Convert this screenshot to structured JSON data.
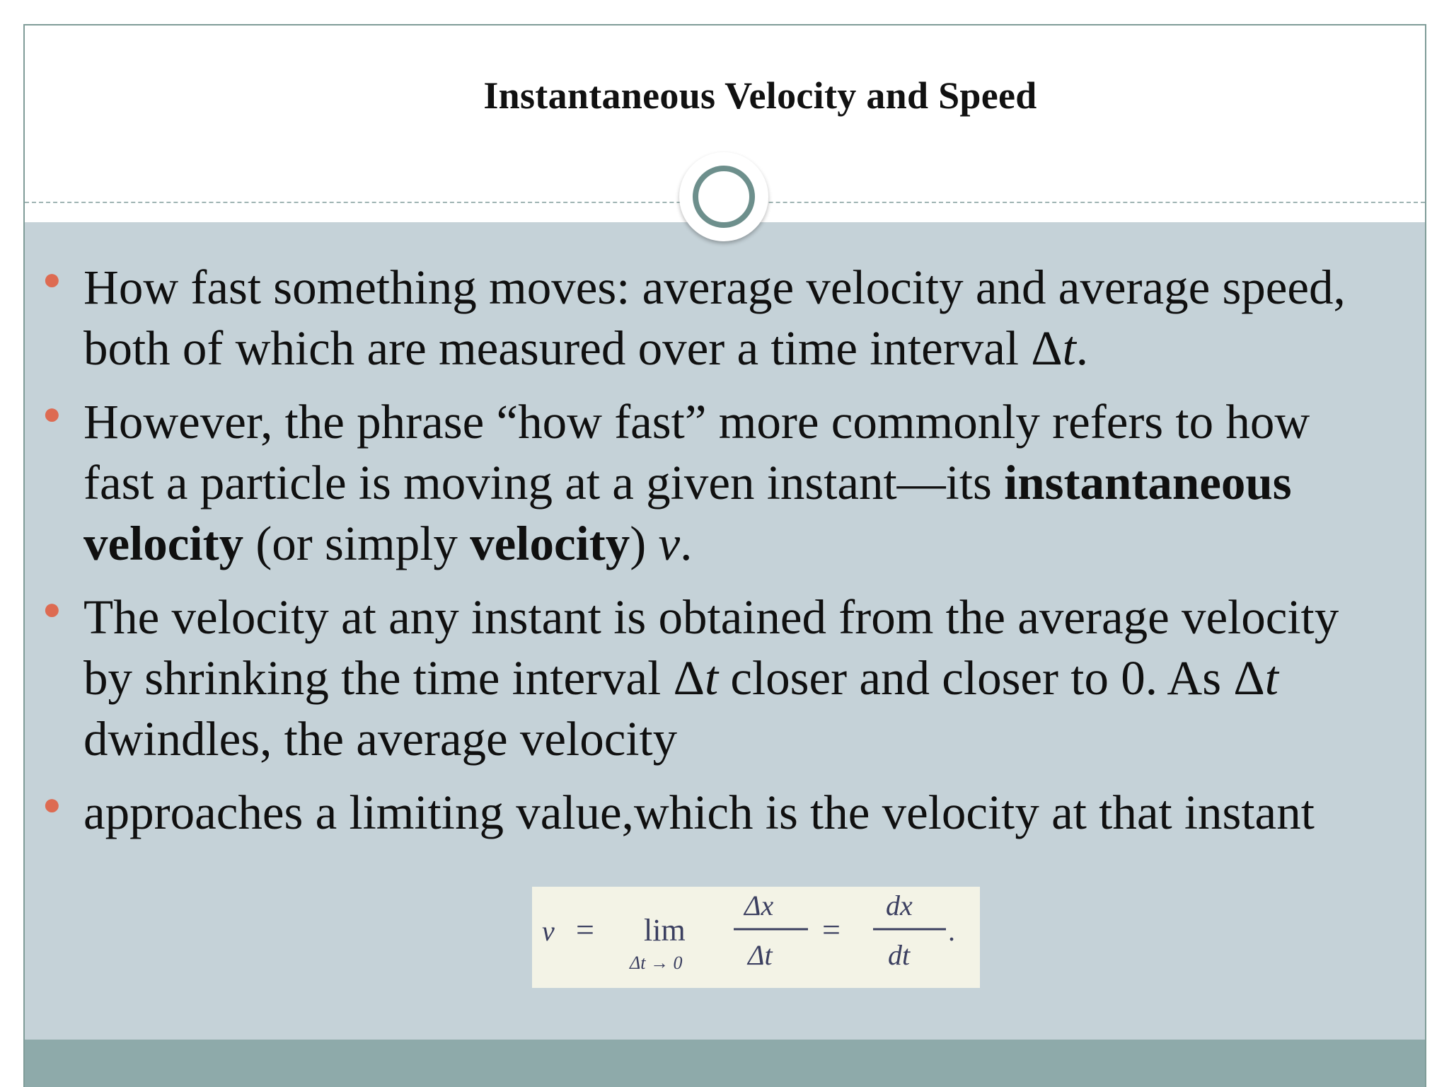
{
  "slide": {
    "title": "Instantaneous Velocity and Speed",
    "bullets": [
      {
        "parts": [
          {
            "text": "How fast something moves: average velocity and average speed, both of which are measured over a time interval Δ"
          },
          {
            "text": "t",
            "style": "italic"
          },
          {
            "text": "."
          }
        ]
      },
      {
        "parts": [
          {
            "text": "However, the phrase “how fast” more commonly refers to how fast a particle is moving at a given instant—its "
          },
          {
            "text": "instantaneous velocity",
            "style": "bold"
          },
          {
            "text": " (or simply "
          },
          {
            "text": "velocity",
            "style": "bold"
          },
          {
            "text": ") "
          },
          {
            "text": "v",
            "style": "italic"
          },
          {
            "text": "."
          }
        ]
      },
      {
        "parts": [
          {
            "text": "The velocity at any instant is obtained from the average velocity by shrinking the time interval Δ"
          },
          {
            "text": "t",
            "style": "italic"
          },
          {
            "text": " closer and closer to 0. As Δ"
          },
          {
            "text": "t",
            "style": "italic"
          },
          {
            "text": " dwindles, the average velocity"
          }
        ]
      },
      {
        "parts": [
          {
            "text": "approaches a limiting value,which is the velocity at that instant"
          }
        ]
      }
    ],
    "formula": {
      "lhs": "v",
      "equals": "=",
      "lim": "lim",
      "lim_sub": "Δt → 0",
      "frac1_num": "Δx",
      "frac1_den": "Δt",
      "frac2_num": "dx",
      "frac2_den": "dt",
      "end": "."
    },
    "colors": {
      "content_bg": "#c5d2d8",
      "footer_band": "#8eaaaa",
      "bullet_dot": "#dd6b52",
      "ring": "#6d8f8c",
      "formula_bg": "#f3f3e6"
    },
    "icons": {
      "bullet": "bullet-dot-icon",
      "title_ring": "ring-icon"
    }
  }
}
